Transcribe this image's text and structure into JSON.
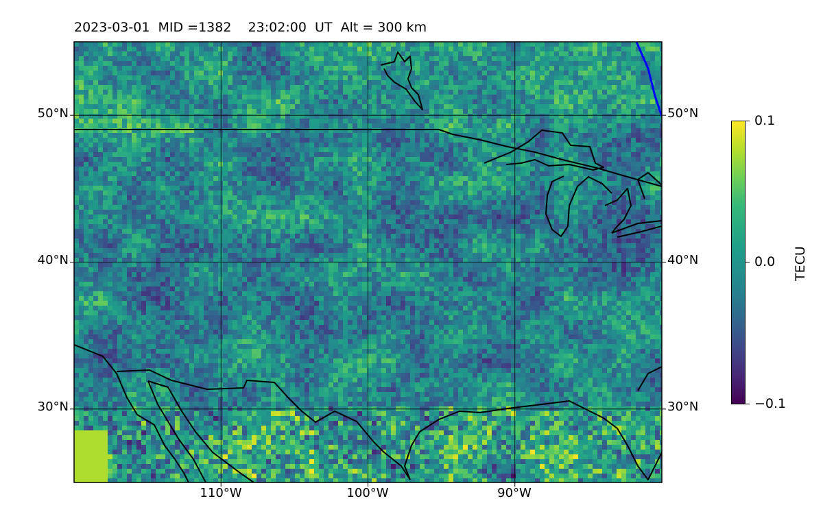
{
  "title": "2023-03-01  MID =1382    23:02:00  UT  Alt = 300 km",
  "map": {
    "extent": {
      "lon_min": -120,
      "lon_max": -80,
      "lat_min": 25,
      "lat_max": 55
    },
    "lat_ticks": [
      {
        "value": 50,
        "label": "50°N"
      },
      {
        "value": 40,
        "label": "40°N"
      },
      {
        "value": 30,
        "label": "30°N"
      }
    ],
    "lon_ticks": [
      {
        "value": -110,
        "label": "110°W"
      },
      {
        "value": -100,
        "label": "100°W"
      },
      {
        "value": -90,
        "label": "90°W"
      }
    ],
    "grid": true,
    "coastline_color": "#000000",
    "track_color": "#0000ff",
    "field_colormap": "viridis"
  },
  "colorbar": {
    "label": "TECU",
    "range": [
      -0.1,
      0.1
    ],
    "ticks": [
      {
        "value": 0.1,
        "label": "0.1"
      },
      {
        "value": 0.0,
        "label": "0.0"
      },
      {
        "value": -0.1,
        "label": "−0.1"
      }
    ]
  }
}
